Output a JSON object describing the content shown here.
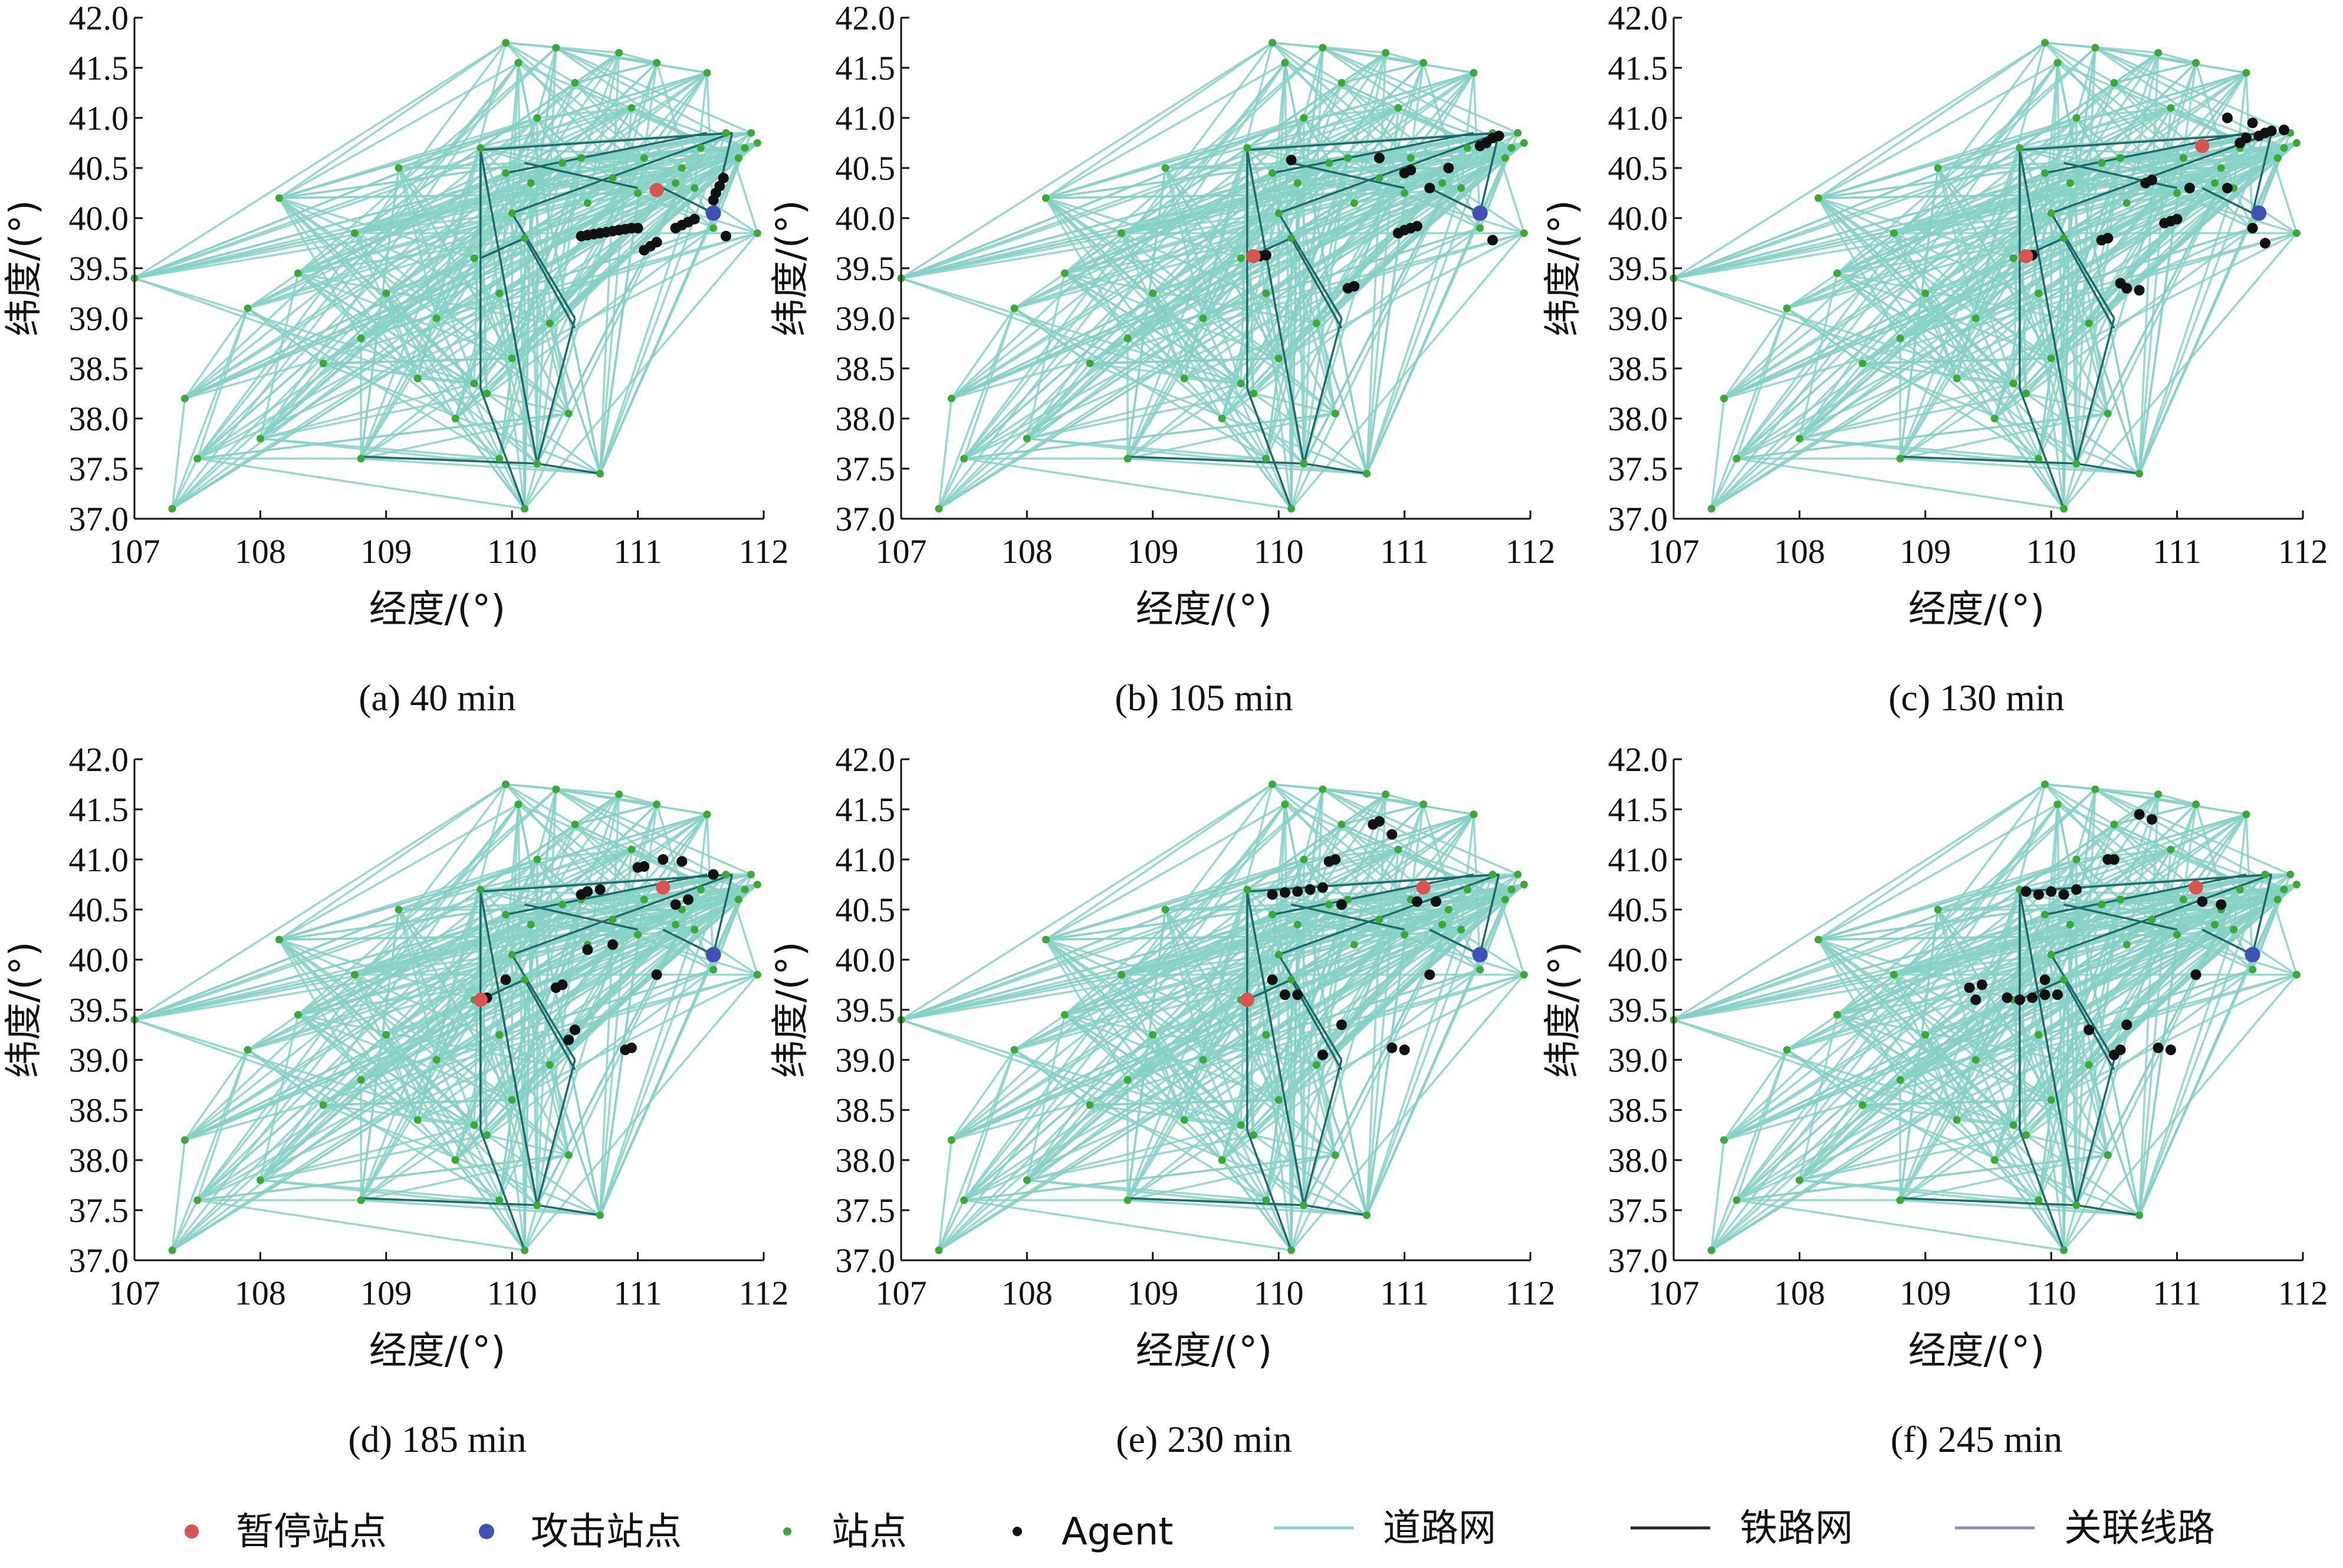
{
  "chart_data": [
    {
      "type": "scatter",
      "caption": "(a) 40 min",
      "xlabel": "经度/(°)",
      "ylabel": "纬度/(°)",
      "xlim": [
        107,
        112
      ],
      "ylim": [
        37.0,
        42.0
      ],
      "xticks": [
        "107",
        "108",
        "109",
        "110",
        "111",
        "112"
      ],
      "yticks": [
        "37.0",
        "37.5",
        "38.0",
        "38.5",
        "39.0",
        "39.5",
        "40.0",
        "40.5",
        "41.0",
        "41.5",
        "42.0"
      ],
      "paused_station": [
        [
          111.15,
          40.28
        ]
      ],
      "attack_station": [
        [
          111.6,
          40.05
        ]
      ],
      "agents": [
        [
          110.55,
          39.82
        ],
        [
          110.6,
          39.83
        ],
        [
          110.65,
          39.84
        ],
        [
          110.7,
          39.85
        ],
        [
          110.75,
          39.86
        ],
        [
          110.8,
          39.87
        ],
        [
          110.85,
          39.88
        ],
        [
          110.9,
          39.89
        ],
        [
          110.95,
          39.9
        ],
        [
          111.0,
          39.9
        ],
        [
          111.05,
          39.68
        ],
        [
          111.1,
          39.72
        ],
        [
          111.15,
          39.76
        ],
        [
          111.3,
          39.9
        ],
        [
          111.35,
          39.93
        ],
        [
          111.4,
          39.96
        ],
        [
          111.45,
          39.99
        ],
        [
          111.6,
          40.18
        ],
        [
          111.62,
          40.25
        ],
        [
          111.65,
          40.32
        ],
        [
          111.68,
          40.4
        ],
        [
          111.7,
          39.82
        ]
      ]
    },
    {
      "type": "scatter",
      "caption": "(b) 105 min",
      "xlabel": "经度/(°)",
      "ylabel": "纬度/(°)",
      "xlim": [
        107,
        112
      ],
      "ylim": [
        37.0,
        42.0
      ],
      "xticks": [
        "107",
        "108",
        "109",
        "110",
        "111",
        "112"
      ],
      "yticks": [
        "37.0",
        "37.5",
        "38.0",
        "38.5",
        "39.0",
        "39.5",
        "40.0",
        "40.5",
        "41.0",
        "41.5",
        "42.0"
      ],
      "paused_station": [
        [
          109.8,
          39.62
        ]
      ],
      "attack_station": [
        [
          111.6,
          40.05
        ]
      ],
      "agents": [
        [
          109.85,
          39.62
        ],
        [
          109.9,
          39.63
        ],
        [
          110.55,
          39.3
        ],
        [
          110.6,
          39.32
        ],
        [
          110.95,
          39.85
        ],
        [
          111.0,
          39.88
        ],
        [
          111.05,
          39.9
        ],
        [
          111.1,
          39.92
        ],
        [
          111.2,
          40.3
        ],
        [
          111.0,
          40.45
        ],
        [
          111.05,
          40.48
        ],
        [
          110.8,
          40.6
        ],
        [
          111.35,
          40.5
        ],
        [
          111.6,
          40.72
        ],
        [
          111.65,
          40.75
        ],
        [
          111.7,
          40.8
        ],
        [
          111.75,
          40.82
        ],
        [
          111.7,
          39.78
        ],
        [
          110.1,
          40.58
        ]
      ]
    },
    {
      "type": "scatter",
      "caption": "(c) 130 min",
      "xlabel": "经度/(°)",
      "ylabel": "纬度/(°)",
      "xlim": [
        107,
        112
      ],
      "ylim": [
        37.0,
        42.0
      ],
      "xticks": [
        "107",
        "108",
        "109",
        "110",
        "111",
        "112"
      ],
      "yticks": [
        "37.0",
        "37.5",
        "38.0",
        "38.5",
        "39.0",
        "39.5",
        "40.0",
        "40.5",
        "41.0",
        "41.5",
        "42.0"
      ],
      "paused_station": [
        [
          111.2,
          40.72
        ],
        [
          109.8,
          39.62
        ]
      ],
      "attack_station": [
        [
          111.65,
          40.05
        ]
      ],
      "agents": [
        [
          109.85,
          39.63
        ],
        [
          110.4,
          39.78
        ],
        [
          110.45,
          39.8
        ],
        [
          110.9,
          39.95
        ],
        [
          110.95,
          39.97
        ],
        [
          111.0,
          39.99
        ],
        [
          110.6,
          39.3
        ],
        [
          110.7,
          39.28
        ],
        [
          110.55,
          39.35
        ],
        [
          110.75,
          40.35
        ],
        [
          110.8,
          40.38
        ],
        [
          111.1,
          40.3
        ],
        [
          111.4,
          40.3
        ],
        [
          111.6,
          39.9
        ],
        [
          111.7,
          39.75
        ],
        [
          111.5,
          40.75
        ],
        [
          111.55,
          40.8
        ],
        [
          111.65,
          40.82
        ],
        [
          111.7,
          40.85
        ],
        [
          111.75,
          40.87
        ],
        [
          111.85,
          40.88
        ],
        [
          111.6,
          40.95
        ],
        [
          111.4,
          41.0
        ]
      ]
    },
    {
      "type": "scatter",
      "caption": "(d) 185 min",
      "xlabel": "经度/(°)",
      "ylabel": "纬度/(°)",
      "xlim": [
        107,
        112
      ],
      "ylim": [
        37.0,
        42.0
      ],
      "xticks": [
        "107",
        "108",
        "109",
        "110",
        "111",
        "112"
      ],
      "yticks": [
        "37.0",
        "37.5",
        "38.0",
        "38.5",
        "39.0",
        "39.5",
        "40.0",
        "40.5",
        "41.0",
        "41.5",
        "42.0"
      ],
      "paused_station": [
        [
          111.2,
          40.72
        ],
        [
          109.75,
          39.6
        ]
      ],
      "attack_station": [
        [
          111.6,
          40.05
        ]
      ],
      "agents": [
        [
          109.8,
          39.62
        ],
        [
          109.95,
          39.8
        ],
        [
          110.35,
          39.72
        ],
        [
          110.4,
          39.75
        ],
        [
          110.5,
          39.3
        ],
        [
          110.45,
          39.2
        ],
        [
          110.6,
          40.1
        ],
        [
          110.8,
          40.15
        ],
        [
          110.9,
          39.1
        ],
        [
          110.95,
          39.12
        ],
        [
          110.55,
          40.65
        ],
        [
          110.6,
          40.68
        ],
        [
          110.7,
          40.7
        ],
        [
          111.0,
          40.92
        ],
        [
          111.05,
          40.93
        ],
        [
          111.2,
          41.0
        ],
        [
          111.35,
          40.98
        ],
        [
          111.6,
          40.85
        ],
        [
          111.3,
          40.55
        ],
        [
          111.4,
          40.6
        ],
        [
          111.15,
          39.85
        ]
      ]
    },
    {
      "type": "scatter",
      "caption": "(e) 230 min",
      "xlabel": "经度/(°)",
      "ylabel": "纬度/(°)",
      "xlim": [
        107,
        112
      ],
      "ylim": [
        37.0,
        42.0
      ],
      "xticks": [
        "107",
        "108",
        "109",
        "110",
        "111",
        "112"
      ],
      "yticks": [
        "37.0",
        "37.5",
        "38.0",
        "38.5",
        "39.0",
        "39.5",
        "40.0",
        "40.5",
        "41.0",
        "41.5",
        "42.0"
      ],
      "paused_station": [
        [
          111.15,
          40.72
        ],
        [
          109.75,
          39.6
        ]
      ],
      "attack_station": [
        [
          111.6,
          40.05
        ]
      ],
      "agents": [
        [
          109.95,
          39.8
        ],
        [
          110.05,
          39.65
        ],
        [
          110.15,
          39.65
        ],
        [
          110.5,
          39.35
        ],
        [
          110.9,
          39.12
        ],
        [
          111.0,
          39.1
        ],
        [
          110.35,
          39.05
        ],
        [
          109.95,
          40.65
        ],
        [
          110.05,
          40.67
        ],
        [
          110.15,
          40.68
        ],
        [
          110.25,
          40.7
        ],
        [
          110.35,
          40.72
        ],
        [
          110.4,
          40.98
        ],
        [
          110.45,
          41.0
        ],
        [
          110.75,
          41.35
        ],
        [
          110.8,
          41.38
        ],
        [
          110.9,
          41.25
        ],
        [
          111.25,
          40.58
        ],
        [
          111.1,
          40.58
        ],
        [
          111.2,
          39.85
        ],
        [
          110.5,
          40.55
        ]
      ]
    },
    {
      "type": "scatter",
      "caption": "(f) 245 min",
      "xlabel": "经度/(°)",
      "ylabel": "纬度/(°)",
      "xlim": [
        107,
        112
      ],
      "ylim": [
        37.0,
        42.0
      ],
      "xticks": [
        "107",
        "108",
        "109",
        "110",
        "111",
        "112"
      ],
      "yticks": [
        "37.0",
        "37.5",
        "38.0",
        "38.5",
        "39.0",
        "39.5",
        "40.0",
        "40.5",
        "41.0",
        "41.5",
        "42.0"
      ],
      "paused_station": [
        [
          111.15,
          40.72
        ]
      ],
      "attack_station": [
        [
          111.6,
          40.05
        ]
      ],
      "agents": [
        [
          109.35,
          39.72
        ],
        [
          109.45,
          39.75
        ],
        [
          109.4,
          39.6
        ],
        [
          109.65,
          39.62
        ],
        [
          109.75,
          39.6
        ],
        [
          109.85,
          39.62
        ],
        [
          109.95,
          39.65
        ],
        [
          110.05,
          39.65
        ],
        [
          109.95,
          39.8
        ],
        [
          110.5,
          39.05
        ],
        [
          110.55,
          39.1
        ],
        [
          110.6,
          39.35
        ],
        [
          110.85,
          39.12
        ],
        [
          110.95,
          39.1
        ],
        [
          110.3,
          39.3
        ],
        [
          109.8,
          40.68
        ],
        [
          109.9,
          40.65
        ],
        [
          110.0,
          40.68
        ],
        [
          110.1,
          40.65
        ],
        [
          110.2,
          40.7
        ],
        [
          110.45,
          41.0
        ],
        [
          110.5,
          41.0
        ],
        [
          110.7,
          41.45
        ],
        [
          110.8,
          41.4
        ],
        [
          111.2,
          40.58
        ],
        [
          111.35,
          40.55
        ],
        [
          111.15,
          39.85
        ]
      ]
    }
  ],
  "legend": {
    "paused_station": {
      "label": "暂停站点",
      "color": "#d9534f"
    },
    "attack_station": {
      "label": "攻击站点",
      "color": "#3f51b5"
    },
    "station": {
      "label": "站点",
      "color": "#3aaa35"
    },
    "agent": {
      "label": "Agent",
      "color": "#111111"
    },
    "road": {
      "label": "道路网",
      "color": "#86d1c6"
    },
    "rail": {
      "label": "铁路网",
      "color": "#1f2a2a"
    },
    "link": {
      "label": "关联线路",
      "color": "#8a8fb5"
    }
  },
  "network": {
    "stations": [
      [
        107.0,
        39.4
      ],
      [
        107.3,
        37.1
      ],
      [
        107.4,
        38.2
      ],
      [
        107.5,
        37.6
      ],
      [
        107.9,
        39.1
      ],
      [
        108.0,
        37.8
      ],
      [
        108.15,
        40.2
      ],
      [
        108.3,
        39.45
      ],
      [
        108.5,
        38.55
      ],
      [
        108.75,
        39.85
      ],
      [
        108.8,
        37.6
      ],
      [
        108.8,
        38.8
      ],
      [
        109.0,
        39.25
      ],
      [
        109.1,
        40.5
      ],
      [
        109.25,
        38.4
      ],
      [
        109.4,
        39.0
      ],
      [
        109.55,
        38.0
      ],
      [
        109.7,
        38.35
      ],
      [
        109.7,
        39.6
      ],
      [
        109.75,
        40.7
      ],
      [
        109.8,
        38.25
      ],
      [
        109.9,
        39.25
      ],
      [
        109.9,
        37.6
      ],
      [
        109.95,
        40.45
      ],
      [
        109.95,
        41.75
      ],
      [
        110.0,
        40.05
      ],
      [
        110.0,
        38.6
      ],
      [
        110.05,
        41.55
      ],
      [
        110.1,
        39.8
      ],
      [
        110.1,
        37.1
      ],
      [
        110.15,
        40.35
      ],
      [
        110.2,
        41.0
      ],
      [
        110.2,
        37.55
      ],
      [
        110.3,
        38.95
      ],
      [
        110.35,
        41.7
      ],
      [
        110.4,
        40.55
      ],
      [
        110.45,
        38.05
      ],
      [
        110.5,
        41.35
      ],
      [
        110.55,
        40.6
      ],
      [
        110.6,
        40.15
      ],
      [
        110.7,
        37.45
      ],
      [
        110.8,
        40.4
      ],
      [
        110.85,
        41.65
      ],
      [
        110.95,
        41.1
      ],
      [
        111.0,
        40.25
      ],
      [
        111.05,
        40.6
      ],
      [
        111.15,
        41.55
      ],
      [
        111.3,
        40.35
      ],
      [
        111.35,
        40.5
      ],
      [
        111.45,
        40.3
      ],
      [
        111.5,
        40.7
      ],
      [
        111.55,
        41.45
      ],
      [
        111.6,
        39.9
      ],
      [
        111.7,
        40.85
      ],
      [
        111.8,
        40.6
      ],
      [
        111.85,
        40.7
      ],
      [
        111.9,
        40.85
      ],
      [
        111.95,
        39.85
      ],
      [
        111.95,
        40.75
      ]
    ]
  }
}
